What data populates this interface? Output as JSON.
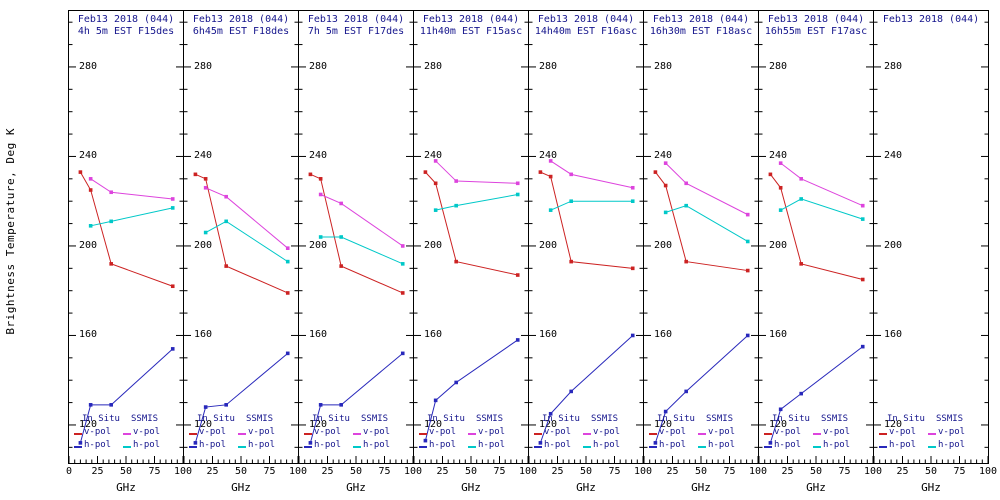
{
  "chart_data": {
    "type": "line",
    "title": "",
    "ylabel": "Brightness Temperature, Deg K",
    "xlabel": "GHz",
    "xlim": [
      0,
      100
    ],
    "ylim": [
      103,
      305
    ],
    "yticks": [
      120,
      160,
      200,
      240,
      280
    ],
    "xticks": [
      0,
      25,
      50,
      75,
      100
    ],
    "grid": false,
    "legend_position": "bottom-inside-each-panel",
    "colors": {
      "insitu_v": "#cc2222",
      "insitu_h": "#2828bb",
      "ssmis_v": "#dd44dd",
      "ssmis_h": "#00c8c8",
      "title_text": "#14148c",
      "axis": "#000000"
    },
    "legend": {
      "col1_header": "In Situ",
      "col2_header": "SSMIS",
      "vpol_label": "v-pol",
      "hpol_label": "h-pol"
    },
    "insitu_x": [
      10,
      19,
      37,
      91
    ],
    "ssmis_x": [
      19,
      37,
      91
    ],
    "panels": [
      {
        "title1": "Feb13 2018 (044)",
        "title2": "4h 5m EST F15des",
        "insitu_v": [
          233,
          225,
          192,
          182
        ],
        "insitu_h": [
          112,
          129,
          129,
          154
        ],
        "ssmis_v": [
          230,
          224,
          221
        ],
        "ssmis_h": [
          209,
          211,
          217
        ]
      },
      {
        "title1": "Feb13 2018 (044)",
        "title2": "6h45m EST F18des",
        "insitu_v": [
          232,
          230,
          191,
          179
        ],
        "insitu_h": [
          112,
          128,
          129,
          152
        ],
        "ssmis_v": [
          226,
          222,
          199
        ],
        "ssmis_h": [
          206,
          211,
          193
        ]
      },
      {
        "title1": "Feb13 2018 (044)",
        "title2": "7h 5m EST F17des",
        "insitu_v": [
          232,
          230,
          191,
          179
        ],
        "insitu_h": [
          112,
          129,
          129,
          152
        ],
        "ssmis_v": [
          223,
          219,
          200
        ],
        "ssmis_h": [
          204,
          204,
          192
        ]
      },
      {
        "title1": "Feb13 2018 (044)",
        "title2": "11h40m EST F15asc",
        "insitu_v": [
          233,
          228,
          193,
          187
        ],
        "insitu_h": [
          113,
          131,
          139,
          158
        ],
        "ssmis_v": [
          238,
          229,
          228
        ],
        "ssmis_h": [
          216,
          218,
          223
        ]
      },
      {
        "title1": "Feb13 2018 (044)",
        "title2": "14h40m EST F16asc",
        "insitu_v": [
          233,
          231,
          193,
          190
        ],
        "insitu_h": [
          112,
          125,
          135,
          160
        ],
        "ssmis_v": [
          238,
          232,
          226
        ],
        "ssmis_h": [
          216,
          220,
          220
        ]
      },
      {
        "title1": "Feb13 2018 (044)",
        "title2": "16h30m EST F18asc",
        "insitu_v": [
          233,
          227,
          193,
          189
        ],
        "insitu_h": [
          112,
          126,
          135,
          160
        ],
        "ssmis_v": [
          237,
          228,
          214
        ],
        "ssmis_h": [
          215,
          218,
          202
        ]
      },
      {
        "title1": "Feb13 2018 (044)",
        "title2": "16h55m EST F17asc",
        "insitu_v": [
          232,
          226,
          192,
          185
        ],
        "insitu_h": [
          112,
          127,
          134,
          155
        ],
        "ssmis_v": [
          237,
          230,
          218
        ],
        "ssmis_h": [
          216,
          221,
          212
        ]
      },
      {
        "title1": "Feb13 2018 (044)",
        "title2": "",
        "insitu_v": null,
        "insitu_h": null,
        "ssmis_v": null,
        "ssmis_h": null
      }
    ]
  }
}
